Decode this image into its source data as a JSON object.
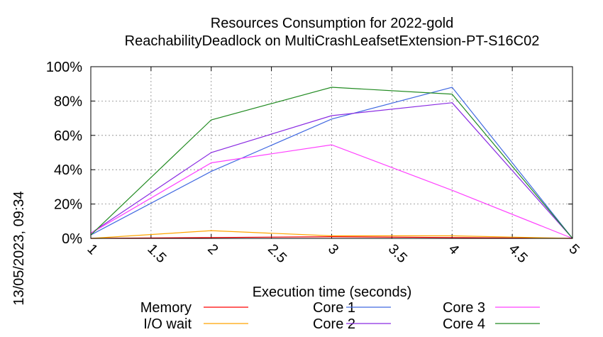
{
  "chart_data": {
    "type": "line",
    "title_line1": "Resources Consumption for 2022-gold",
    "title_line2": "ReachabilityDeadlock on MultiCrashLeafsetExtension-PT-S16C02",
    "xlabel": "Execution time (seconds)",
    "ylabel": "",
    "side_label": "13/05/2023, 09:34",
    "xlim": [
      1,
      5
    ],
    "ylim": [
      0,
      100
    ],
    "x_ticks": [
      "1",
      "1.5",
      "2",
      "2.5",
      "3",
      "3.5",
      "4",
      "4.5",
      "5"
    ],
    "y_ticks": [
      "0%",
      "20%",
      "40%",
      "60%",
      "80%",
      "100%"
    ],
    "grid": true,
    "legend_position": "bottom",
    "x": [
      1,
      2,
      3,
      4,
      5
    ],
    "series": [
      {
        "name": "Memory",
        "color": "#ff0000",
        "values": [
          0,
          0.5,
          1,
          0.5,
          0
        ]
      },
      {
        "name": "I/O wait",
        "color": "#ffa500",
        "values": [
          0,
          4.5,
          1.5,
          1.5,
          0
        ]
      },
      {
        "name": "Core 1",
        "color": "#4169e1",
        "values": [
          2,
          39,
          69.5,
          88,
          0
        ]
      },
      {
        "name": "Core 2",
        "color": "#8a2be2",
        "values": [
          3,
          50,
          71.5,
          79,
          0
        ]
      },
      {
        "name": "Core 3",
        "color": "#ff40ff",
        "values": [
          3,
          44,
          54.5,
          28,
          0
        ]
      },
      {
        "name": "Core 4",
        "color": "#228b22",
        "values": [
          2,
          69,
          88,
          84,
          0
        ]
      }
    ]
  }
}
